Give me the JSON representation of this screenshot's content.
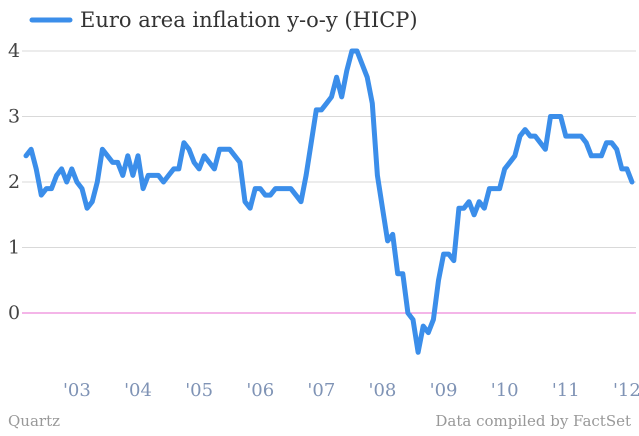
{
  "chart_data": {
    "type": "line",
    "title": "",
    "xlabel": "",
    "ylabel": "",
    "legend": {
      "placement": "top-left",
      "entries": [
        "Euro area inflation y-o-y (HICP)"
      ]
    },
    "ylim": [
      -0.6,
      4.0
    ],
    "yticks": [
      "0",
      "1",
      "2",
      "3",
      "4"
    ],
    "xticks": [
      "'03",
      "'04",
      "'05",
      "'06",
      "'07",
      "'08",
      "'09",
      "'10",
      "'11",
      "'12"
    ],
    "grid": true,
    "zero_line_color": "#e86bd0",
    "series": [
      {
        "name": "Euro area inflation y-o-y (HICP)",
        "color": "#3b8eea",
        "x": [
          "2002-09",
          "2002-10",
          "2002-11",
          "2002-12",
          "2003-01",
          "2003-02",
          "2003-03",
          "2003-04",
          "2003-05",
          "2003-06",
          "2003-07",
          "2003-08",
          "2003-09",
          "2003-10",
          "2003-11",
          "2003-12",
          "2004-01",
          "2004-02",
          "2004-03",
          "2004-04",
          "2004-05",
          "2004-06",
          "2004-07",
          "2004-08",
          "2004-09",
          "2004-10",
          "2004-11",
          "2004-12",
          "2005-01",
          "2005-02",
          "2005-03",
          "2005-04",
          "2005-05",
          "2005-06",
          "2005-07",
          "2005-08",
          "2005-09",
          "2005-10",
          "2005-11",
          "2005-12",
          "2006-01",
          "2006-02",
          "2006-03",
          "2006-04",
          "2006-05",
          "2006-06",
          "2006-07",
          "2006-08",
          "2006-09",
          "2006-10",
          "2006-11",
          "2006-12",
          "2007-01",
          "2007-02",
          "2007-03",
          "2007-04",
          "2007-05",
          "2007-06",
          "2007-07",
          "2007-08",
          "2007-09",
          "2007-10",
          "2007-11",
          "2007-12",
          "2008-01",
          "2008-02",
          "2008-03",
          "2008-04",
          "2008-05",
          "2008-06",
          "2008-07",
          "2008-08",
          "2008-09",
          "2008-10",
          "2008-11",
          "2008-12",
          "2009-01",
          "2009-02",
          "2009-03",
          "2009-04",
          "2009-05",
          "2009-06",
          "2009-07",
          "2009-08",
          "2009-09",
          "2009-10",
          "2009-11",
          "2009-12",
          "2010-01",
          "2010-02",
          "2010-03",
          "2010-04",
          "2010-05",
          "2010-06",
          "2010-07",
          "2010-08",
          "2010-09",
          "2010-10",
          "2010-11",
          "2010-12",
          "2011-01",
          "2011-02",
          "2011-03",
          "2011-04",
          "2011-05",
          "2011-06",
          "2011-07",
          "2011-08",
          "2011-09",
          "2011-10",
          "2011-11",
          "2011-12",
          "2012-01",
          "2012-02",
          "2012-03",
          "2012-04",
          "2012-05",
          "2012-06",
          "2012-07",
          "2012-08"
        ],
        "values": [
          2.4,
          2.5,
          2.2,
          1.8,
          1.9,
          1.9,
          2.1,
          2.2,
          2.0,
          2.2,
          2.0,
          1.9,
          1.6,
          1.7,
          2.0,
          2.5,
          2.4,
          2.3,
          2.3,
          2.1,
          2.4,
          2.1,
          2.4,
          1.9,
          2.1,
          2.1,
          2.1,
          2.0,
          2.1,
          2.2,
          2.2,
          2.6,
          2.5,
          2.3,
          2.2,
          2.4,
          2.3,
          2.2,
          2.5,
          2.5,
          2.5,
          2.4,
          2.3,
          1.7,
          1.6,
          1.9,
          1.9,
          1.8,
          1.8,
          1.9,
          1.9,
          1.9,
          1.9,
          1.8,
          1.7,
          2.1,
          2.6,
          3.1,
          3.1,
          3.2,
          3.3,
          3.6,
          3.3,
          3.7,
          4.0,
          4.0,
          3.8,
          3.6,
          3.2,
          2.1,
          1.6,
          1.1,
          1.2,
          0.6,
          0.6,
          0.0,
          -0.1,
          -0.6,
          -0.2,
          -0.3,
          -0.1,
          0.5,
          0.9,
          0.9,
          0.8,
          1.6,
          1.6,
          1.7,
          1.5,
          1.7,
          1.6,
          1.9,
          1.9,
          1.9,
          2.2,
          2.3,
          2.4,
          2.7,
          2.8,
          2.7,
          2.7,
          2.6,
          2.5,
          3.0,
          3.0,
          3.0,
          2.7,
          2.7,
          2.7,
          2.7,
          2.6,
          2.4,
          2.4,
          2.4,
          2.6,
          2.6,
          2.5,
          2.2,
          2.2,
          2.0
        ]
      }
    ]
  },
  "footer": {
    "source_left": "Quartz",
    "source_right": "Data compiled by FactSet"
  }
}
